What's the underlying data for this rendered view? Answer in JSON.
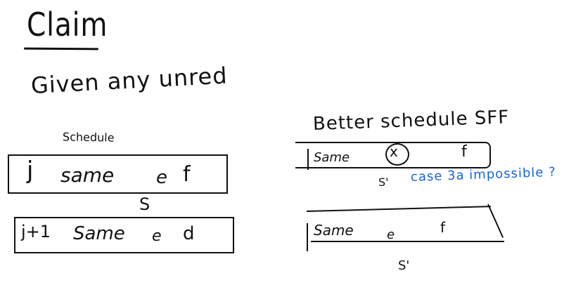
{
  "notes": {
    "title": "Claim",
    "given_line": "Given any unred",
    "schedule_label": "Schedule",
    "box1": {
      "j": "j",
      "same": "same",
      "e": "e",
      "f": "f"
    },
    "s_label": "S",
    "box2": {
      "j": "j+1",
      "same": "Same",
      "e": "e",
      "d": "d"
    },
    "better_label": "Better schedule SFF",
    "box3": {
      "same": "Same",
      "x": "x",
      "f": "f"
    },
    "s_prime_1": "S'",
    "note_blue": "case 3a impossible ?",
    "box4": {
      "same": "Same",
      "e": "e",
      "f": "f"
    },
    "s_prime_2": "S'",
    "colors": {
      "ink": "#111111",
      "blue_ink": "#1565d8"
    }
  }
}
